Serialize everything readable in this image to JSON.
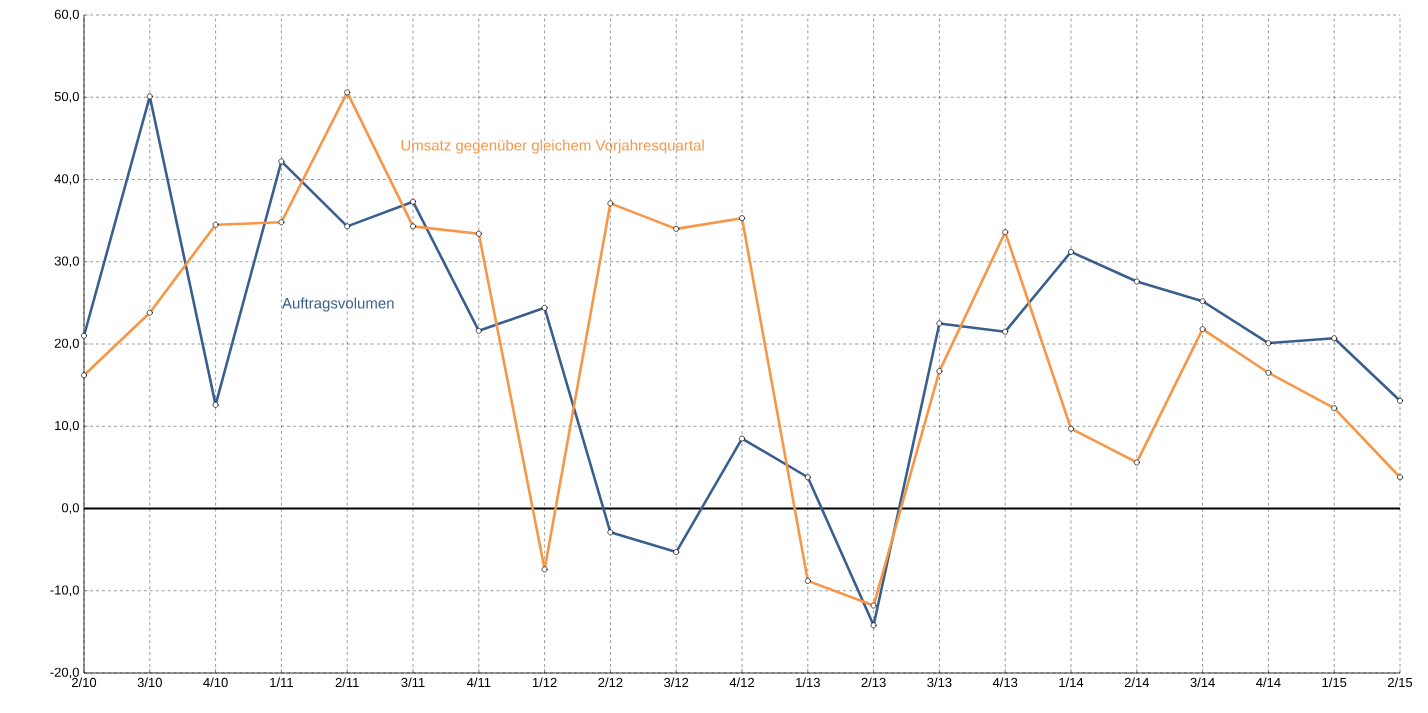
{
  "chart_data": {
    "type": "line",
    "categories": [
      "2/10",
      "3/10",
      "4/10",
      "1/11",
      "2/11",
      "3/11",
      "4/11",
      "1/12",
      "2/12",
      "3/12",
      "4/12",
      "1/13",
      "2/13",
      "3/13",
      "4/13",
      "1/14",
      "2/14",
      "3/14",
      "4/14",
      "1/15",
      "2/15"
    ],
    "series": [
      {
        "name": "Auftragsvolumen",
        "color": "#3a5f8f",
        "values": [
          21.0,
          50.1,
          12.6,
          42.2,
          34.3,
          37.3,
          21.6,
          24.4,
          -2.9,
          -5.3,
          8.5,
          3.8,
          -14.2,
          22.5,
          21.5,
          31.2,
          27.6,
          25.2,
          20.1,
          20.7,
          13.1
        ]
      },
      {
        "name": "Umsatz gegenüber gleichem Vorjahresquartal",
        "color": "#f79646",
        "values": [
          16.2,
          23.8,
          34.5,
          34.8,
          50.6,
          34.3,
          33.4,
          -7.4,
          37.1,
          34.0,
          35.3,
          -8.8,
          -11.8,
          16.7,
          33.6,
          9.7,
          5.6,
          21.8,
          16.5,
          12.2,
          3.8
        ]
      }
    ],
    "ylim": [
      -20,
      60
    ],
    "yticks": [
      {
        "value": -20,
        "label": "-20,0"
      },
      {
        "value": -10,
        "label": "-10,0"
      },
      {
        "value": 0,
        "label": "0,0"
      },
      {
        "value": 10,
        "label": "10,0"
      },
      {
        "value": 20,
        "label": "20,0"
      },
      {
        "value": 30,
        "label": "30,0"
      },
      {
        "value": 40,
        "label": "40,0"
      },
      {
        "value": 50,
        "label": "50,0"
      },
      {
        "value": 60,
        "label": "60,0"
      }
    ],
    "ref_lines": [
      {
        "axis": "y",
        "value": 0,
        "color": "#000000"
      }
    ],
    "grid": true,
    "legend": false,
    "marker": "circle",
    "line_style": "solid"
  }
}
